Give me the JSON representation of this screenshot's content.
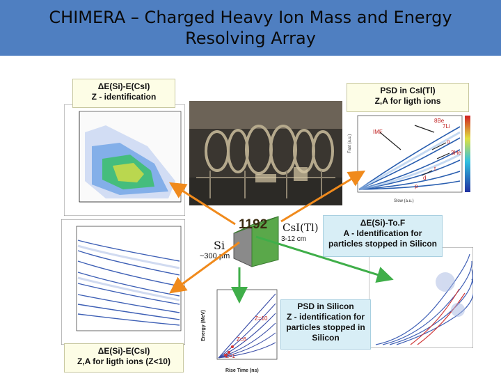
{
  "title": "CHIMERA – Charged Heavy Ion Mass and Energy Resolving Array",
  "boxes": {
    "top_left": [
      "ΔE(Si)-E(CsI)",
      "Z - identification"
    ],
    "top_right": [
      "PSD in CsI(Tl)",
      "Z,A for ligth ions"
    ],
    "mid_right": [
      "ΔE(Si)-To.F",
      "A - Identification for",
      "particles stopped in Silicon"
    ],
    "bottom_mid": [
      "PSD in Silicon",
      "Z - identification for",
      "particles stopped in",
      "Silicon"
    ],
    "bottom_left": [
      "ΔE(Si)-E(CsI)",
      "Z,A for ligth ions (Z<10)"
    ]
  },
  "detector": {
    "count": "1192",
    "csi": "CsI(Tl)",
    "csi_len": "3-12 cm",
    "si": "Si",
    "si_thick": "~300 μm"
  },
  "psd_csi_labels": {
    "ylabel": "Fast (a.u.)",
    "xlabel": "Slow (a.u.)",
    "ions": [
      "8Be",
      "7Li",
      "IMF",
      "α",
      "3He",
      "t",
      "d",
      "p"
    ]
  },
  "psd_si_labels": {
    "ylabel": "Energy (MeV)",
    "xlabel": "Rise Time (ns)",
    "zlabels": [
      "Z=10",
      "Z=6",
      "Z=1"
    ]
  },
  "colors": {
    "title_bar": "#4f7fc1",
    "arrow_orange": "#f08a1c",
    "arrow_green": "#3fae49",
    "box_yellow": "#fdfde6",
    "box_cyan": "#d8eef6"
  }
}
